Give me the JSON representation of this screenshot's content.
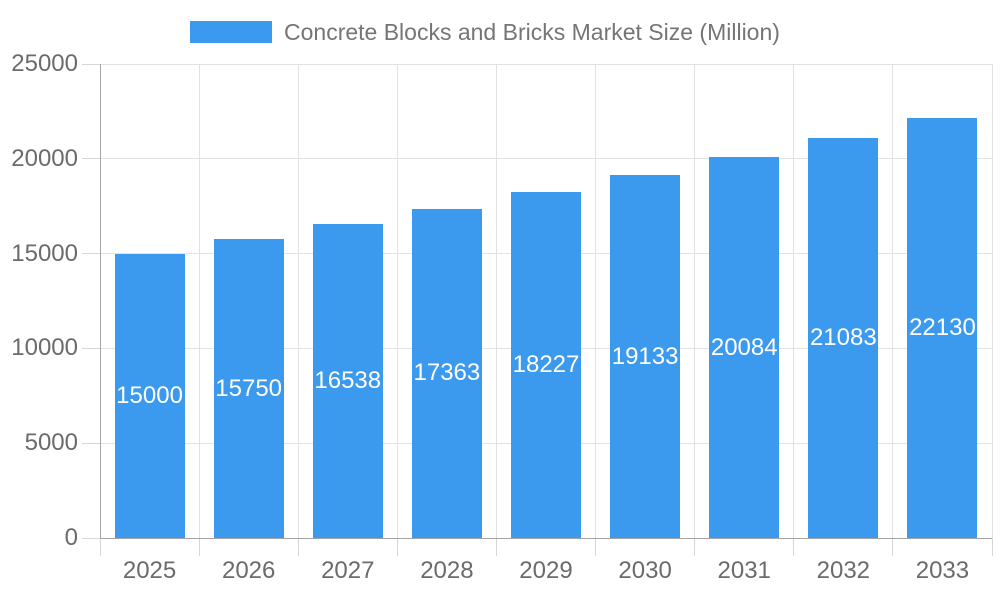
{
  "legend": {
    "label": "Concrete Blocks and Bricks Market Size (Million)",
    "position": "top"
  },
  "chart_data": {
    "type": "bar",
    "title": "Concrete Blocks and Bricks Market Size (Million)",
    "categories": [
      "2025",
      "2026",
      "2027",
      "2028",
      "2029",
      "2030",
      "2031",
      "2032",
      "2033"
    ],
    "values": [
      15000,
      15750,
      16538,
      17363,
      18227,
      19133,
      20084,
      21083,
      22130
    ],
    "value_labels_shown": true,
    "xlabel": "",
    "ylabel": "",
    "ylim": [
      0,
      25000
    ],
    "yticks": [
      0,
      5000,
      10000,
      15000,
      20000,
      25000
    ],
    "grid": true,
    "legend_position": "top"
  },
  "colors": {
    "bar": "#3b99ee",
    "grid": "#e2e2e2",
    "tick": "#d6d6d6",
    "axis": "#a3a3a3",
    "tick_label": "#6b6b6b",
    "legend_label": "#757575",
    "value_label": "#ffffff",
    "background": "#ffffff"
  }
}
